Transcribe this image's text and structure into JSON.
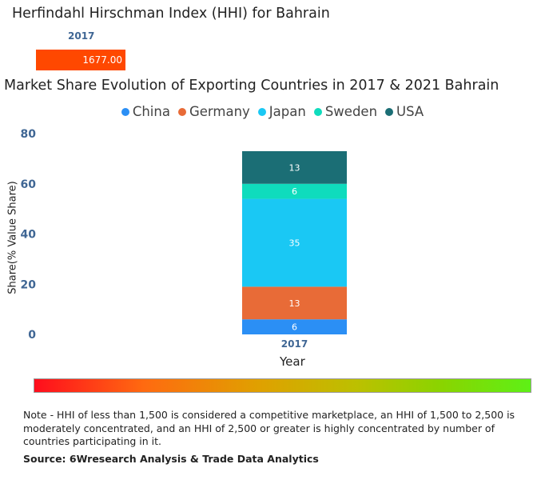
{
  "hhi": {
    "title": "Herfindahl Hirschman Index (HHI) for Bahrain",
    "year": "2017",
    "value": 1677.0,
    "value_label": "1677.00",
    "bar_color": "#ff4800"
  },
  "chart_data": {
    "type": "bar",
    "stacked": true,
    "title": "Market Share Evolution of Exporting Countries in 2017 & 2021 Bahrain",
    "xlabel": "Year",
    "ylabel": "Share(% Value Share)",
    "categories": [
      "2017"
    ],
    "ylim": [
      0,
      80
    ],
    "yticks": [
      0,
      20,
      40,
      60,
      80
    ],
    "legend_position": "top-center",
    "grid": false,
    "series": [
      {
        "name": "China",
        "color": "#2b8ff5",
        "values": [
          6
        ]
      },
      {
        "name": "Germany",
        "color": "#e86b37",
        "values": [
          13
        ]
      },
      {
        "name": "Japan",
        "color": "#1ac8f4",
        "values": [
          35
        ]
      },
      {
        "name": "Sweden",
        "color": "#0fdcbd",
        "values": [
          6
        ]
      },
      {
        "name": "USA",
        "color": "#1b6e75",
        "values": [
          13
        ]
      }
    ]
  },
  "gradient": {
    "start_color": "#ff0d1d",
    "end_color": "#5ef016"
  },
  "footer": {
    "note": "Note - HHI of less than 1,500 is considered a competitive marketplace, an HHI of 1,500 to 2,500 is moderately concentrated, and an HHI of 2,500 or greater is highly concentrated by number of countries participating in it.",
    "source": "Source: 6Wresearch Analysis & Trade Data Analytics"
  }
}
